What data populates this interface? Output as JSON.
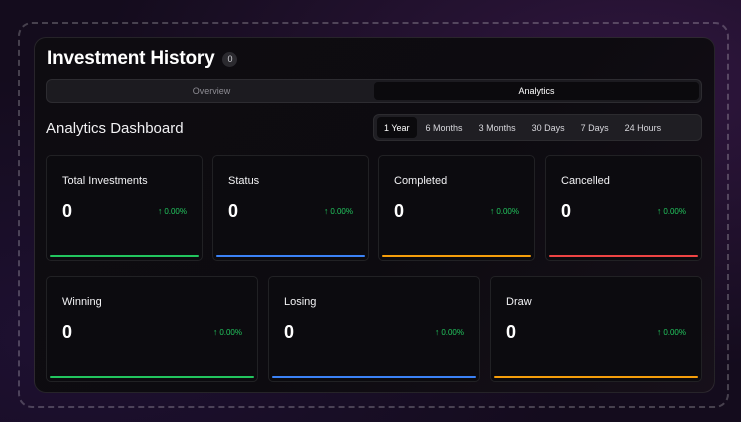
{
  "header": {
    "title": "Investment History",
    "count_badge": "0"
  },
  "tabs": [
    {
      "label": "Overview",
      "active": false
    },
    {
      "label": "Analytics",
      "active": true
    }
  ],
  "section": {
    "title": "Analytics Dashboard"
  },
  "time_ranges": [
    {
      "label": "1 Year",
      "active": true
    },
    {
      "label": "6 Months",
      "active": false
    },
    {
      "label": "3 Months",
      "active": false
    },
    {
      "label": "30 Days",
      "active": false
    },
    {
      "label": "7 Days",
      "active": false
    },
    {
      "label": "24 Hours",
      "active": false
    }
  ],
  "cards": [
    {
      "label": "Total Investments",
      "value": "0",
      "change": "0.00%",
      "accent": "#22c55e"
    },
    {
      "label": "Status",
      "value": "0",
      "change": "0.00%",
      "accent": "#3b82f6"
    },
    {
      "label": "Completed",
      "value": "0",
      "change": "0.00%",
      "accent": "#f59e0b"
    },
    {
      "label": "Cancelled",
      "value": "0",
      "change": "0.00%",
      "accent": "#ef4444"
    },
    {
      "label": "Winning",
      "value": "0",
      "change": "0.00%",
      "accent": "#22c55e"
    },
    {
      "label": "Losing",
      "value": "0",
      "change": "0.00%",
      "accent": "#3b82f6"
    },
    {
      "label": "Draw",
      "value": "0",
      "change": "0.00%",
      "accent": "#f59e0b"
    }
  ],
  "icons": {
    "change_arrow": "arrow-up-icon"
  },
  "colors": {
    "positive": "#22c55e"
  }
}
